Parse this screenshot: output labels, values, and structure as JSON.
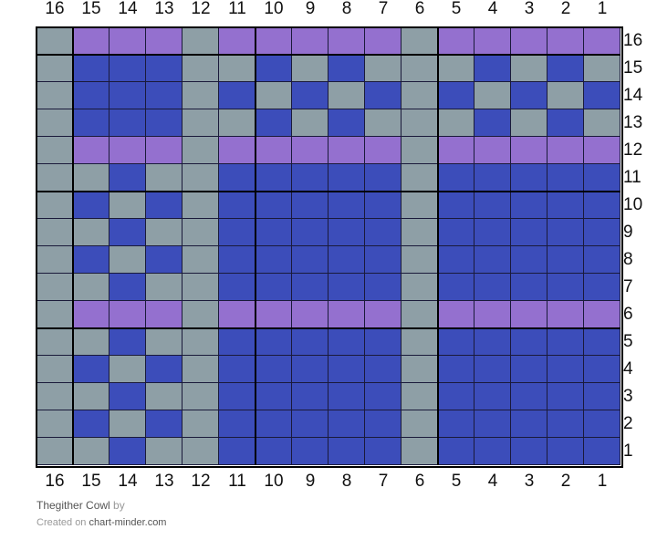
{
  "colors": {
    "grey": "#8e9fa6",
    "purple": "#9470cf",
    "blue": "#3c4dba"
  },
  "column_numbers": [
    "16",
    "15",
    "14",
    "13",
    "12",
    "11",
    "10",
    "9",
    "8",
    "7",
    "6",
    "5",
    "4",
    "3",
    "2",
    "1"
  ],
  "row_numbers": [
    "16",
    "15",
    "14",
    "13",
    "12",
    "11",
    "10",
    "9",
    "8",
    "7",
    "6",
    "5",
    "4",
    "3",
    "2",
    "1"
  ],
  "grid": [
    "GPPPGPPPPPGPPPPP",
    "GBBBGGBGBGGGBGBG",
    "GBBBGBGBGBGBGBGB",
    "GBBBGGBGBGGGBGBG",
    "GPPPGPPPPPGPPPPP",
    "GGBGGBBBBBGBBBBB",
    "GBGBGBBBBBGBBBBB",
    "GGBGGBBBBBGBBBBB",
    "GBGBGBBBBBGBBBBB",
    "GGBGGBBBBBGBBBBB",
    "GPPPGPPPPPGPPPPP",
    "GGBGGBBBBBGBBBBB",
    "GBGBGBBBBBGBBBBB",
    "GGBGGBBBBBGBBBBB",
    "GBGBGBBBBBGBBBBB",
    "GGBGGBBBBBGBBBBB"
  ],
  "footer": {
    "title": "Thegither Cowl",
    "by": "by",
    "created_on": "Created on",
    "site": "chart-minder.com"
  }
}
